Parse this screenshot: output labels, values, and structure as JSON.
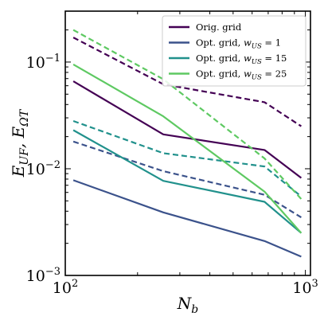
{
  "chart_data": {
    "type": "line",
    "xscale": "log",
    "yscale": "log",
    "xlabel": "N_b",
    "ylabel": "E_UF, E_ΩT",
    "xlim": [
      100,
      1050
    ],
    "ylim": [
      0.001,
      0.3
    ],
    "x_ticks": [
      {
        "value": 100,
        "base": "10",
        "exp": "2"
      },
      {
        "value": 1000,
        "base": "10",
        "exp": "3"
      }
    ],
    "y_ticks": [
      {
        "value": 0.001,
        "base": "10",
        "exp": "−3"
      },
      {
        "value": 0.01,
        "base": "10",
        "exp": "−2"
      },
      {
        "value": 0.1,
        "base": "10",
        "exp": "−1"
      }
    ],
    "grid": false,
    "legend_position": "top-right",
    "legend": [
      {
        "name": "Orig. grid",
        "color": "#440154"
      },
      {
        "name": "Opt. grid, w_US = 1",
        "color": "#3b528b"
      },
      {
        "name": "Opt. grid, w_US = 15",
        "color": "#21918c"
      },
      {
        "name": "Opt. grid, w_US = 25",
        "color": "#5ec962"
      }
    ],
    "series": [
      {
        "name": "Orig. grid",
        "color": "#440154",
        "style": "solid",
        "x": [
          108,
          256,
          676,
          961
        ],
        "y": [
          0.066,
          0.021,
          0.015,
          0.0082
        ]
      },
      {
        "name": "Orig. grid",
        "color": "#440154",
        "style": "dashed",
        "x": [
          108,
          256,
          676,
          961
        ],
        "y": [
          0.17,
          0.062,
          0.042,
          0.025
        ]
      },
      {
        "name": "Opt. grid, w_US = 1",
        "color": "#3b528b",
        "style": "solid",
        "x": [
          108,
          256,
          676,
          961
        ],
        "y": [
          0.0078,
          0.0039,
          0.0021,
          0.0015
        ]
      },
      {
        "name": "Opt. grid, w_US = 1",
        "color": "#3b528b",
        "style": "dashed",
        "x": [
          108,
          256,
          676,
          961
        ],
        "y": [
          0.018,
          0.0095,
          0.0057,
          0.0035
        ]
      },
      {
        "name": "Opt. grid, w_US = 15",
        "color": "#21918c",
        "style": "solid",
        "x": [
          108,
          256,
          676,
          961
        ],
        "y": [
          0.023,
          0.0077,
          0.0049,
          0.0025
        ]
      },
      {
        "name": "Opt. grid, w_US = 15",
        "color": "#21918c",
        "style": "dashed",
        "x": [
          108,
          256,
          676,
          961
        ],
        "y": [
          0.028,
          0.014,
          0.0105,
          0.0055
        ]
      },
      {
        "name": "Opt. grid, w_US = 25",
        "color": "#5ec962",
        "style": "solid",
        "x": [
          108,
          256,
          676,
          961
        ],
        "y": [
          0.095,
          0.031,
          0.0061,
          0.0025
        ]
      },
      {
        "name": "Opt. grid, w_US = 25",
        "color": "#5ec962",
        "style": "dashed",
        "x": [
          108,
          256,
          676,
          961
        ],
        "y": [
          0.2,
          0.069,
          0.0125,
          0.0052
        ]
      }
    ]
  }
}
